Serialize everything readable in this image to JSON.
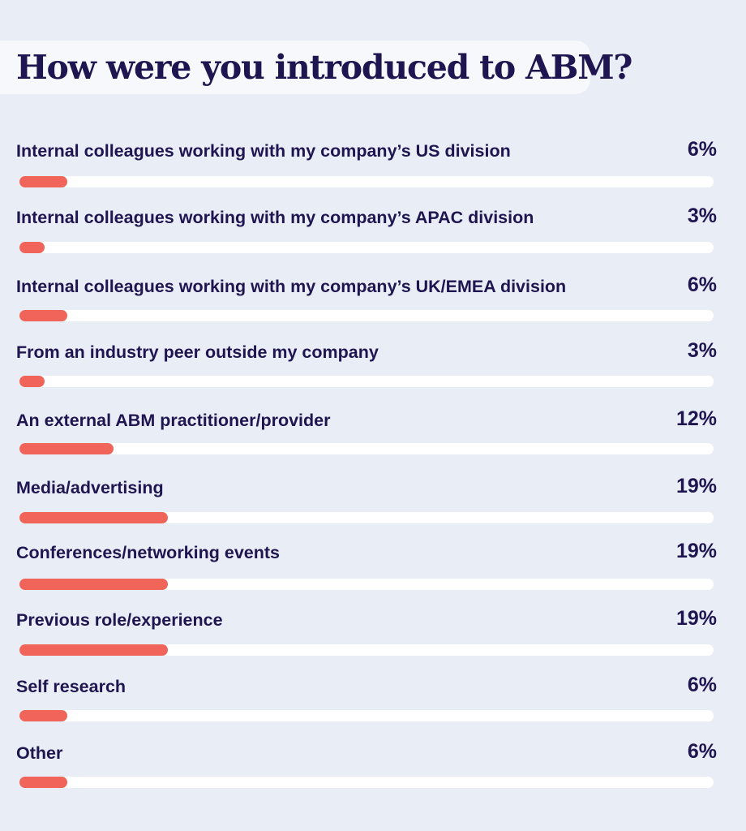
{
  "title": "How were you introduced to ABM?",
  "colors": {
    "background": "#e9edf5",
    "title_background": "#f7f8fb",
    "text": "#1f1550",
    "bar_fill": "#f0645a",
    "bar_track": "#ffffff"
  },
  "chart_data": {
    "type": "bar",
    "orientation": "horizontal",
    "title": "How were you introduced to ABM?",
    "value_suffix": "%",
    "xlim": [
      0,
      100
    ],
    "categories": [
      "Internal colleagues working with my company’s US division",
      "Internal colleagues working with my company’s APAC division",
      "Internal colleagues working with my company’s UK/EMEA division",
      "From an industry peer outside my company",
      "An external ABM practitioner/provider",
      "Media/advertising",
      "Conferences/networking events",
      "Previous role/experience",
      "Self research",
      "Other"
    ],
    "values": [
      6,
      3,
      6,
      3,
      12,
      19,
      19,
      19,
      6,
      6
    ],
    "value_labels": [
      "6%",
      "3%",
      "6%",
      "3%",
      "12%",
      "19%",
      "19%",
      "19%",
      "6%",
      "6%"
    ]
  }
}
